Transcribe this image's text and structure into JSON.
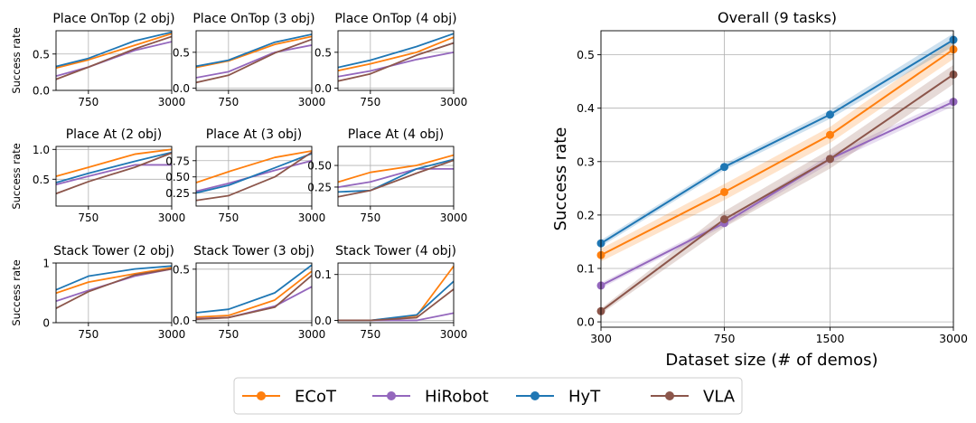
{
  "colors": {
    "ECoT": "#ff7f0e",
    "HiRobot": "#9467bd",
    "HyT": "#1f77b4",
    "VLA": "#8c564b",
    "grid": "#b0b0b0"
  },
  "legend": {
    "placement": "bottom-center",
    "entries": [
      "ECoT",
      "HiRobot",
      "HyT",
      "VLA"
    ]
  },
  "chart_data": [
    {
      "type": "line",
      "title": "Place OnTop (2 obj)",
      "ylabel": "Success rate",
      "x": [
        300,
        750,
        1500,
        3000
      ],
      "x_ticks": [
        "750",
        "3000"
      ],
      "ylim": [
        0,
        0.82
      ],
      "y_ticks": [
        "0.0",
        "0.5"
      ],
      "y_tick_values": [
        0,
        0.5
      ],
      "grid": true,
      "series": [
        {
          "name": "ECoT",
          "values": [
            0.22,
            0.42,
            0.62,
            0.78
          ]
        },
        {
          "name": "HiRobot",
          "values": [
            0.1,
            0.32,
            0.55,
            0.67
          ]
        },
        {
          "name": "HyT",
          "values": [
            0.24,
            0.44,
            0.68,
            0.8
          ]
        },
        {
          "name": "VLA",
          "values": [
            0.02,
            0.32,
            0.57,
            0.74
          ]
        }
      ]
    },
    {
      "type": "line",
      "title": "Place OnTop (3 obj)",
      "ylabel": "",
      "x": [
        300,
        750,
        1500,
        3000
      ],
      "x_ticks": [
        "750",
        "3000"
      ],
      "ylim": [
        -0.03,
        0.8
      ],
      "y_ticks": [
        "0.0",
        "0.5"
      ],
      "y_tick_values": [
        0,
        0.5
      ],
      "grid": true,
      "series": [
        {
          "name": "ECoT",
          "values": [
            0.22,
            0.38,
            0.61,
            0.72
          ]
        },
        {
          "name": "HiRobot",
          "values": [
            0.08,
            0.23,
            0.5,
            0.6
          ]
        },
        {
          "name": "HyT",
          "values": [
            0.24,
            0.39,
            0.64,
            0.75
          ]
        },
        {
          "name": "VLA",
          "values": [
            0.0,
            0.18,
            0.49,
            0.68
          ]
        }
      ]
    },
    {
      "type": "line",
      "title": "Place OnTop (4 obj)",
      "ylabel": "",
      "x": [
        300,
        750,
        1500,
        3000
      ],
      "x_ticks": [
        "750",
        "3000"
      ],
      "ylim": [
        -0.03,
        0.8
      ],
      "y_ticks": [
        "0.0",
        "0.5"
      ],
      "y_tick_values": [
        0,
        0.5
      ],
      "grid": true,
      "series": [
        {
          "name": "ECoT",
          "values": [
            0.17,
            0.34,
            0.5,
            0.71
          ]
        },
        {
          "name": "HiRobot",
          "values": [
            0.1,
            0.24,
            0.4,
            0.5
          ]
        },
        {
          "name": "HyT",
          "values": [
            0.21,
            0.39,
            0.58,
            0.76
          ]
        },
        {
          "name": "VLA",
          "values": [
            0.02,
            0.2,
            0.46,
            0.63
          ]
        }
      ]
    },
    {
      "type": "line",
      "title": "Place At (2 obj)",
      "ylabel": "Success rate",
      "x": [
        300,
        750,
        1500,
        3000
      ],
      "x_ticks": [
        "750",
        "3000"
      ],
      "ylim": [
        0.05,
        1.05
      ],
      "y_ticks": [
        "0.5",
        "1.0"
      ],
      "y_tick_values": [
        0.5,
        1.0
      ],
      "grid": true,
      "series": [
        {
          "name": "ECoT",
          "values": [
            0.43,
            0.7,
            0.92,
            1.0
          ]
        },
        {
          "name": "HiRobot",
          "values": [
            0.3,
            0.55,
            0.74,
            0.74
          ]
        },
        {
          "name": "HyT",
          "values": [
            0.32,
            0.6,
            0.8,
            0.95
          ]
        },
        {
          "name": "VLA",
          "values": [
            0.1,
            0.46,
            0.7,
            0.94
          ]
        }
      ]
    },
    {
      "type": "line",
      "title": "Place At (3 obj)",
      "ylabel": "",
      "x": [
        300,
        750,
        1500,
        3000
      ],
      "x_ticks": [
        "750",
        "3000"
      ],
      "ylim": [
        0.05,
        0.97
      ],
      "y_ticks": [
        "0.25",
        "0.50",
        "0.75"
      ],
      "y_tick_values": [
        0.25,
        0.5,
        0.75
      ],
      "grid": true,
      "series": [
        {
          "name": "ECoT",
          "values": [
            0.28,
            0.58,
            0.8,
            0.9
          ]
        },
        {
          "name": "HiRobot",
          "values": [
            0.18,
            0.4,
            0.6,
            0.75
          ]
        },
        {
          "name": "HyT",
          "values": [
            0.16,
            0.37,
            0.64,
            0.86
          ]
        },
        {
          "name": "VLA",
          "values": [
            0.08,
            0.21,
            0.5,
            0.88
          ]
        }
      ]
    },
    {
      "type": "line",
      "title": "Place At (4 obj)",
      "ylabel": "",
      "x": [
        300,
        750,
        1500,
        3000
      ],
      "x_ticks": [
        "750",
        "3000"
      ],
      "ylim": [
        0.03,
        0.72
      ],
      "y_ticks": [
        "0.25",
        "0.50"
      ],
      "y_tick_values": [
        0.25,
        0.5
      ],
      "grid": true,
      "series": [
        {
          "name": "ECoT",
          "values": [
            0.22,
            0.42,
            0.5,
            0.62
          ]
        },
        {
          "name": "HiRobot",
          "values": [
            0.2,
            0.31,
            0.46,
            0.46
          ]
        },
        {
          "name": "HyT",
          "values": [
            0.18,
            0.21,
            0.46,
            0.57
          ]
        },
        {
          "name": "VLA",
          "values": [
            0.08,
            0.21,
            0.41,
            0.56
          ]
        }
      ]
    },
    {
      "type": "line",
      "title": "Stack Tower (2 obj)",
      "ylabel": "Success rate",
      "x": [
        300,
        750,
        1500,
        3000
      ],
      "x_ticks": [
        "750",
        "3000"
      ],
      "ylim": [
        0,
        1.0
      ],
      "y_ticks": [
        "0",
        "1"
      ],
      "y_tick_values": [
        0,
        1
      ],
      "grid": true,
      "series": [
        {
          "name": "ECoT",
          "values": [
            0.35,
            0.68,
            0.82,
            0.92
          ]
        },
        {
          "name": "HiRobot",
          "values": [
            0.22,
            0.54,
            0.78,
            0.9
          ]
        },
        {
          "name": "HyT",
          "values": [
            0.37,
            0.78,
            0.9,
            0.95
          ]
        },
        {
          "name": "VLA",
          "values": [
            0.02,
            0.52,
            0.8,
            0.9
          ]
        }
      ]
    },
    {
      "type": "line",
      "title": "Stack Tower (3 obj)",
      "ylabel": "",
      "x": [
        300,
        750,
        1500,
        3000
      ],
      "x_ticks": [
        "750",
        "3000"
      ],
      "ylim": [
        -0.02,
        0.56
      ],
      "y_ticks": [
        "0.0",
        "0.5"
      ],
      "y_tick_values": [
        0,
        0.5
      ],
      "grid": true,
      "series": [
        {
          "name": "ECoT",
          "values": [
            0.02,
            0.05,
            0.2,
            0.48
          ]
        },
        {
          "name": "HiRobot",
          "values": [
            0.01,
            0.03,
            0.14,
            0.33
          ]
        },
        {
          "name": "HyT",
          "values": [
            0.05,
            0.11,
            0.27,
            0.54
          ]
        },
        {
          "name": "VLA",
          "values": [
            0.0,
            0.03,
            0.13,
            0.44
          ]
        }
      ]
    },
    {
      "type": "line",
      "title": "Stack Tower (4 obj)",
      "ylabel": "",
      "x": [
        300,
        750,
        1500,
        3000
      ],
      "x_ticks": [
        "750",
        "3000"
      ],
      "ylim": [
        -0.005,
        0.125
      ],
      "y_ticks": [
        "0.0",
        "0.1"
      ],
      "y_tick_values": [
        0,
        0.1
      ],
      "grid": true,
      "series": [
        {
          "name": "ECoT",
          "values": [
            0.0,
            0.0,
            0.01,
            0.118
          ]
        },
        {
          "name": "HiRobot",
          "values": [
            0.0,
            0.0,
            0.0,
            0.016
          ]
        },
        {
          "name": "HyT",
          "values": [
            0.0,
            0.0,
            0.012,
            0.085
          ]
        },
        {
          "name": "VLA",
          "values": [
            0.0,
            0.0,
            0.006,
            0.068
          ]
        }
      ]
    },
    {
      "type": "line",
      "title": "Overall (9 tasks)",
      "xlabel": "Dataset size (# of demos)",
      "ylabel": "Success rate",
      "x": [
        300,
        750,
        1500,
        3000
      ],
      "x_ticks": [
        "300",
        "750",
        "1500",
        "3000"
      ],
      "ylim": [
        -0.01,
        0.545
      ],
      "y_ticks": [
        "0.0",
        "0.1",
        "0.2",
        "0.3",
        "0.4",
        "0.5"
      ],
      "y_tick_values": [
        0,
        0.1,
        0.2,
        0.3,
        0.4,
        0.5
      ],
      "grid": true,
      "series": [
        {
          "name": "ECoT",
          "values": [
            0.125,
            0.243,
            0.35,
            0.51
          ],
          "band": [
            0.012,
            0.015,
            0.015,
            0.018
          ]
        },
        {
          "name": "HiRobot",
          "values": [
            0.068,
            0.185,
            0.305,
            0.412
          ],
          "band": [
            0.005,
            0.006,
            0.008,
            0.008
          ]
        },
        {
          "name": "HyT",
          "values": [
            0.147,
            0.29,
            0.388,
            0.528
          ],
          "band": [
            0.006,
            0.006,
            0.008,
            0.012
          ]
        },
        {
          "name": "VLA",
          "values": [
            0.02,
            0.192,
            0.305,
            0.463
          ],
          "band": [
            0.005,
            0.015,
            0.018,
            0.018
          ]
        }
      ]
    }
  ]
}
